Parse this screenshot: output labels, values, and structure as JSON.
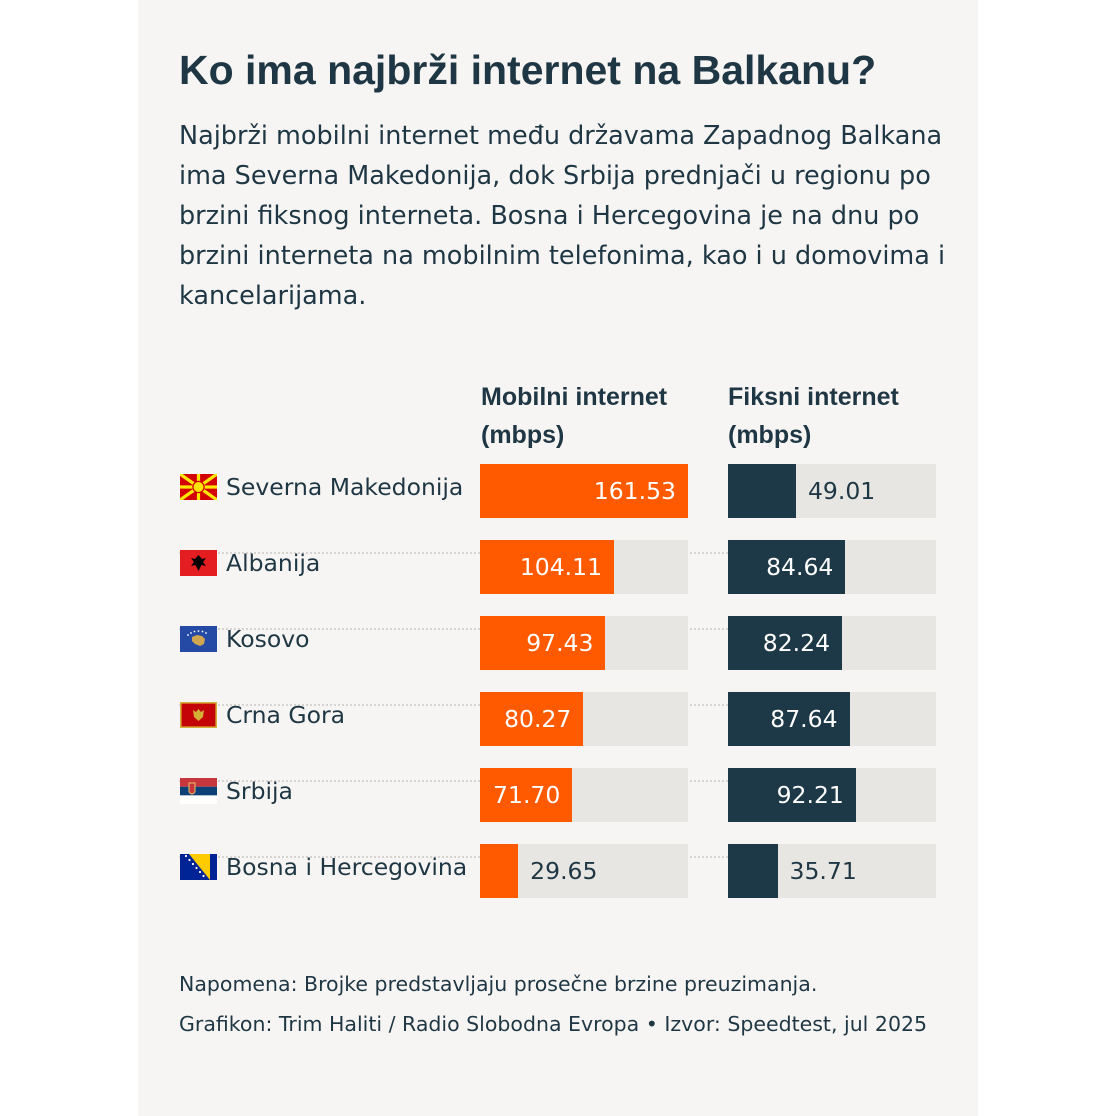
{
  "title": "Ko ima najbrži internet na Balkanu?",
  "subtitle": "Najbrži mobilni internet među državama Zapadnog Balkana ima Severna Makedonija, dok Srbija prednjači u regionu po brzini fiksnog interneta. Bosna i Hercegovina je na dnu po brzini interneta na mobilnim telefonima, kao i u domovima i kancelarijama.",
  "note": "Napomena: Brojke predstavljaju prosečne brzine preuzimanja.",
  "credit": "Grafikon: Trim Haliti / Radio Slobodna Evropa • Izvor: Speedtest, jul 2025",
  "colors": {
    "mobile": "#ff5a00",
    "fixed": "#1d3847",
    "track": "#e7e6e3",
    "background": "#f6f5f3"
  },
  "chart_data": {
    "type": "bar",
    "orientation": "horizontal",
    "categories": [
      "Severna Makedonija",
      "Albanija",
      "Kosovo",
      "Crna Gora",
      "Srbija",
      "Bosna i Hercegovina"
    ],
    "flags": [
      "north-macedonia-flag-icon",
      "albania-flag-icon",
      "kosovo-flag-icon",
      "montenegro-flag-icon",
      "serbia-flag-icon",
      "bosnia-flag-icon"
    ],
    "series": [
      {
        "name": "Mobilni internet (mbps)",
        "values": [
          161.53,
          104.11,
          97.43,
          80.27,
          71.7,
          29.65
        ],
        "labels": [
          "161.53",
          "104.11",
          "97.43",
          "80.27",
          "71.70",
          "29.65"
        ],
        "max": 161.53
      },
      {
        "name": "Fiksni internet (mbps)",
        "values": [
          49.01,
          84.64,
          82.24,
          87.64,
          92.21,
          35.71
        ],
        "labels": [
          "49.01",
          "84.64",
          "82.24",
          "87.64",
          "92.21",
          "35.71"
        ],
        "max": 150
      }
    ]
  }
}
